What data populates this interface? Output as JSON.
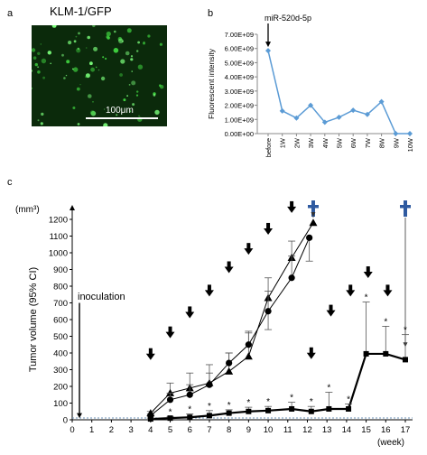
{
  "panels": {
    "a": {
      "letter": "a",
      "title": "KLM-1/GFP",
      "scale_label": "100μm"
    },
    "b": {
      "letter": "b",
      "annotation": "miR-520d-5p"
    },
    "c": {
      "letter": "c",
      "inoculation_label": "inoculation",
      "y_unit": "(mm³)",
      "x_unit": "(week)"
    }
  },
  "chart_data": [
    {
      "type": "line",
      "panel": "b",
      "ylabel": "Fluorescent intensity",
      "categories": [
        "before",
        "1W",
        "2W",
        "3W",
        "4W",
        "5W",
        "6W",
        "7W",
        "8W",
        "9W",
        "10W"
      ],
      "series": [
        {
          "color": "#5b9bd5",
          "values": [
            5850000000.0,
            1600000000.0,
            1100000000.0,
            2000000000.0,
            800000000.0,
            1150000000.0,
            1650000000.0,
            1350000000.0,
            2250000000.0,
            0,
            0
          ]
        }
      ],
      "ylim": [
        0,
        7000000000.0
      ],
      "yticks": [
        0,
        1000000000.0,
        2000000000.0,
        3000000000.0,
        4000000000.0,
        5000000000.0,
        6000000000.0,
        7000000000.0
      ],
      "ytick_labels": [
        "0.00E+00",
        "1.00E+09",
        "2.00E+09",
        "3.00E+09",
        "4.00E+09",
        "5.00E+09",
        "6.00E+09",
        "7.00E+09"
      ],
      "grid": false
    },
    {
      "type": "line",
      "panel": "c",
      "ylabel": "Tumor volume (95% CI)",
      "xlabel": "(week)",
      "xlim": [
        0,
        17
      ],
      "ylim": [
        0,
        1200
      ],
      "xticks": [
        0,
        1,
        2,
        3,
        4,
        5,
        6,
        7,
        8,
        9,
        10,
        11,
        12,
        13,
        14,
        15,
        16,
        17
      ],
      "yticks": [
        0,
        100,
        200,
        300,
        400,
        500,
        600,
        700,
        800,
        900,
        1000,
        1100,
        1200
      ],
      "series": [
        {
          "marker": "triangle",
          "x": [
            4,
            5,
            6,
            7,
            8,
            9,
            10,
            11.2,
            12.3
          ],
          "y": [
            40,
            160,
            190,
            220,
            290,
            380,
            730,
            970,
            1180
          ],
          "err_up": [
            10,
            60,
            90,
            110,
            110,
            150,
            120,
            100,
            0
          ]
        },
        {
          "marker": "circle",
          "x": [
            4,
            5,
            6,
            7,
            8,
            9,
            10,
            11.2,
            12.1
          ],
          "y": [
            25,
            120,
            150,
            210,
            340,
            450,
            650,
            850,
            1090
          ],
          "err_up": [
            10,
            40,
            60,
            70,
            60,
            70,
            120,
            130,
            0
          ],
          "err_down": [
            0,
            0,
            0,
            0,
            0,
            0,
            110,
            0,
            140
          ]
        },
        {
          "marker": "square",
          "x": [
            4,
            5,
            6,
            7,
            8,
            9,
            10,
            11.2,
            12.2,
            13.1,
            14.1,
            15,
            16,
            17
          ],
          "y": [
            5,
            10,
            15,
            25,
            40,
            50,
            55,
            65,
            50,
            65,
            65,
            395,
            395,
            360
          ],
          "err_up": [
            5,
            10,
            20,
            30,
            20,
            25,
            25,
            40,
            30,
            100,
            30,
            310,
            165,
            150
          ],
          "stars": [
            false,
            true,
            true,
            true,
            true,
            true,
            true,
            true,
            true,
            true,
            true,
            true,
            true,
            true
          ]
        }
      ],
      "arrows": {
        "lower_x": [
          4,
          5,
          6,
          7,
          8,
          9,
          10,
          11.2,
          12.2,
          13.2,
          14.2,
          15.1,
          16.1
        ],
        "lower_y": [
          380,
          510,
          630,
          760,
          900,
          1010,
          1130,
          1260,
          385,
          640,
          760,
          870,
          760
        ],
        "note": "treatment arrows shown above data"
      },
      "death_marks_x": [
        12.3,
        17
      ]
    }
  ]
}
